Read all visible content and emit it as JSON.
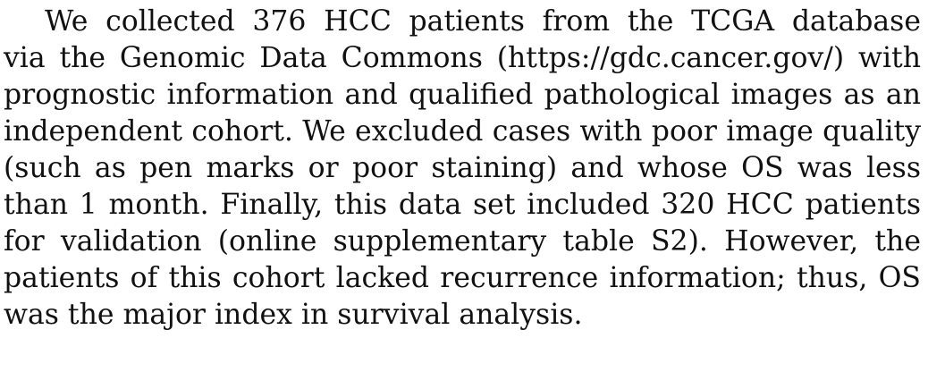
{
  "paragraph": {
    "lines": [
      "We collected 376 HCC patients from the TCGA database",
      "via the Genomic Data Commons (https://gdc.cancer.gov/) with",
      "prognostic information and qualified pathological images as an",
      "independent cohort. We excluded cases with poor image quality",
      "(such as pen marks or poor staining) and whose OS was less",
      "than 1 month. Finally, this data set included 320 HCC patients",
      "for validation (online supplementary table S2). However, the",
      "patients of this cohort lacked recurrence information; thus, OS",
      "was the major index in survival analysis."
    ]
  }
}
